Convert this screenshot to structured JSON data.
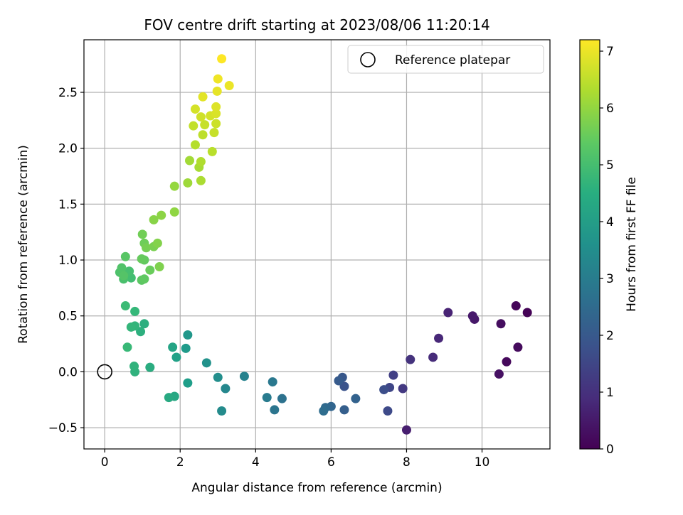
{
  "chart_data": {
    "type": "scatter",
    "title": "FOV centre drift starting at 2023/08/06 11:20:14",
    "xlabel": "Angular distance from reference (arcmin)",
    "ylabel": "Rotation from reference (arcmin)",
    "xlim": [
      -0.55,
      11.8
    ],
    "ylim": [
      -0.69,
      2.97
    ],
    "xticks": [
      0,
      2,
      4,
      6,
      8,
      10
    ],
    "xtick_labels": [
      "0",
      "2",
      "4",
      "6",
      "8",
      "10"
    ],
    "yticks": [
      -0.5,
      0.0,
      0.5,
      1.0,
      1.5,
      2.0,
      2.5
    ],
    "ytick_labels": [
      "−0.5",
      "0.0",
      "0.5",
      "1.0",
      "1.5",
      "2.0",
      "2.5"
    ],
    "grid": true,
    "legend": {
      "position": "top-right",
      "entries": [
        {
          "label": "Reference platepar",
          "marker": "open-circle"
        }
      ]
    },
    "reference_point": {
      "x": 0.0,
      "y": 0.0
    },
    "colorbar": {
      "label": "Hours from first FF file",
      "colormap": "viridis",
      "range": [
        0,
        7.2
      ],
      "ticks": [
        0,
        1,
        2,
        3,
        4,
        5,
        6,
        7
      ],
      "tick_labels": [
        "0",
        "1",
        "2",
        "3",
        "4",
        "5",
        "6",
        "7"
      ]
    },
    "columns": [
      "x",
      "y",
      "hours"
    ],
    "points": [
      [
        11.2,
        0.53,
        0.05
      ],
      [
        10.9,
        0.59,
        0.1
      ],
      [
        10.65,
        0.09,
        0.15
      ],
      [
        10.95,
        0.22,
        0.2
      ],
      [
        10.5,
        0.43,
        0.25
      ],
      [
        10.45,
        -0.02,
        0.3
      ],
      [
        9.8,
        0.47,
        0.45
      ],
      [
        9.75,
        0.5,
        0.5
      ],
      [
        8.0,
        -0.52,
        0.6
      ],
      [
        9.1,
        0.53,
        0.7
      ],
      [
        8.85,
        0.3,
        0.8
      ],
      [
        8.7,
        0.13,
        0.9
      ],
      [
        8.1,
        0.11,
        1.05
      ],
      [
        7.9,
        -0.15,
        1.2
      ],
      [
        7.65,
        -0.03,
        1.35
      ],
      [
        7.55,
        -0.14,
        1.5
      ],
      [
        7.5,
        -0.35,
        1.6
      ],
      [
        7.4,
        -0.16,
        1.7
      ],
      [
        6.35,
        -0.13,
        1.85
      ],
      [
        6.3,
        -0.05,
        1.95
      ],
      [
        6.2,
        -0.08,
        2.05
      ],
      [
        6.35,
        -0.34,
        2.15
      ],
      [
        6.65,
        -0.24,
        2.25
      ],
      [
        6.0,
        -0.31,
        2.35
      ],
      [
        5.85,
        -0.32,
        2.45
      ],
      [
        5.8,
        -0.35,
        2.55
      ],
      [
        4.7,
        -0.24,
        2.7
      ],
      [
        4.5,
        -0.34,
        2.8
      ],
      [
        4.45,
        -0.09,
        2.9
      ],
      [
        4.3,
        -0.23,
        3.0
      ],
      [
        3.7,
        -0.04,
        3.2
      ],
      [
        3.2,
        -0.15,
        3.35
      ],
      [
        3.1,
        -0.35,
        3.45
      ],
      [
        3.0,
        -0.05,
        3.55
      ],
      [
        2.7,
        0.08,
        3.65
      ],
      [
        2.2,
        0.33,
        3.8
      ],
      [
        2.15,
        0.21,
        3.9
      ],
      [
        2.2,
        -0.1,
        4.0
      ],
      [
        1.9,
        0.13,
        4.1
      ],
      [
        1.8,
        0.22,
        4.2
      ],
      [
        1.85,
        -0.22,
        4.3
      ],
      [
        1.7,
        -0.23,
        4.35
      ],
      [
        1.2,
        0.04,
        4.45
      ],
      [
        1.05,
        0.43,
        4.5
      ],
      [
        0.95,
        0.36,
        4.55
      ],
      [
        0.8,
        0.0,
        4.6
      ],
      [
        0.78,
        0.05,
        4.65
      ],
      [
        0.8,
        0.41,
        4.7
      ],
      [
        0.7,
        0.4,
        4.75
      ],
      [
        0.8,
        0.54,
        4.8
      ],
      [
        0.6,
        0.22,
        4.85
      ],
      [
        0.55,
        0.59,
        4.9
      ],
      [
        0.7,
        0.84,
        5.0
      ],
      [
        0.65,
        0.9,
        5.05
      ],
      [
        0.5,
        0.83,
        5.1
      ],
      [
        0.4,
        0.89,
        5.15
      ],
      [
        0.45,
        0.93,
        5.2
      ],
      [
        0.5,
        0.86,
        5.25
      ],
      [
        0.55,
        1.03,
        5.3
      ],
      [
        0.98,
        0.82,
        5.35
      ],
      [
        1.05,
        0.83,
        5.4
      ],
      [
        1.05,
        1.0,
        5.45
      ],
      [
        0.98,
        1.01,
        5.5
      ],
      [
        1.2,
        0.91,
        5.55
      ],
      [
        1.05,
        1.15,
        5.6
      ],
      [
        1.0,
        1.23,
        5.65
      ],
      [
        1.1,
        1.11,
        5.7
      ],
      [
        1.3,
        1.12,
        5.75
      ],
      [
        1.45,
        0.94,
        5.8
      ],
      [
        1.4,
        1.15,
        5.85
      ],
      [
        1.3,
        1.36,
        5.9
      ],
      [
        1.5,
        1.4,
        5.95
      ],
      [
        1.85,
        1.43,
        6.0
      ],
      [
        1.85,
        1.66,
        6.05
      ],
      [
        2.2,
        1.69,
        6.15
      ],
      [
        2.25,
        1.89,
        6.2
      ],
      [
        2.5,
        1.83,
        6.25
      ],
      [
        2.55,
        1.71,
        6.3
      ],
      [
        2.55,
        1.88,
        6.35
      ],
      [
        2.4,
        2.03,
        6.4
      ],
      [
        2.85,
        1.97,
        6.45
      ],
      [
        2.6,
        2.12,
        6.5
      ],
      [
        2.35,
        2.2,
        6.55
      ],
      [
        2.65,
        2.21,
        6.6
      ],
      [
        2.95,
        2.22,
        6.65
      ],
      [
        2.9,
        2.14,
        6.6
      ],
      [
        2.55,
        2.28,
        6.7
      ],
      [
        2.8,
        2.29,
        6.75
      ],
      [
        2.95,
        2.31,
        6.8
      ],
      [
        2.4,
        2.35,
        6.75
      ],
      [
        2.95,
        2.37,
        6.85
      ],
      [
        2.6,
        2.46,
        6.9
      ],
      [
        2.98,
        2.51,
        6.95
      ],
      [
        3.3,
        2.56,
        7.0
      ],
      [
        3.0,
        2.62,
        7.05
      ],
      [
        3.1,
        2.8,
        7.2
      ]
    ]
  }
}
